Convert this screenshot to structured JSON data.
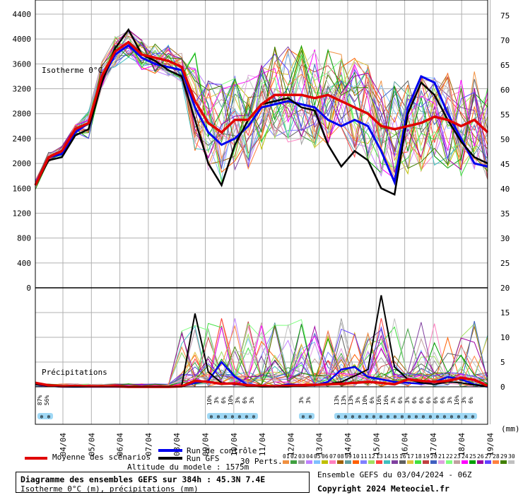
{
  "chart_data": {
    "type": "line",
    "days": [
      "04/04",
      "05/04",
      "06/04",
      "07/04",
      "08/04",
      "09/04",
      "10/04",
      "11/04",
      "12/04",
      "13/04",
      "14/04",
      "15/04",
      "16/04",
      "17/04",
      "18/04",
      "19/04"
    ],
    "left_axis_ticks": [
      0,
      400,
      800,
      1200,
      1600,
      2000,
      2400,
      2800,
      3200,
      3600,
      4000,
      4400
    ],
    "right_axis_top_ticks": [
      25,
      30,
      35,
      40,
      45,
      50,
      55,
      60,
      65,
      70,
      75
    ],
    "right_axis_bottom_ticks": [
      0,
      5,
      10,
      15,
      20
    ],
    "right_axis_unit": "(mm)",
    "isotherm_label": "Isotherme 0°C",
    "precip_label": "Précipitations",
    "series": [
      {
        "name": "Moyenne des scénarios",
        "color": "#e00000",
        "values": [
          1650,
          2100,
          2200,
          2550,
          2650,
          3400,
          3800,
          3950,
          3750,
          3700,
          3650,
          3550,
          3000,
          2650,
          2500,
          2700,
          2700,
          2950,
          3100,
          3100,
          3100,
          3050,
          3100,
          3000,
          2900,
          2800,
          2600,
          2550,
          2600,
          2650,
          2750,
          2700,
          2600,
          2700,
          2500
        ]
      },
      {
        "name": "Run de contrôle",
        "color": "#0000ee",
        "values": [
          1650,
          2100,
          2150,
          2500,
          2650,
          3350,
          3750,
          3900,
          3700,
          3600,
          3550,
          3500,
          2900,
          2500,
          2300,
          2400,
          2600,
          2900,
          2950,
          3000,
          2950,
          2900,
          2700,
          2600,
          2700,
          2600,
          2200,
          1700,
          2900,
          3400,
          3300,
          2800,
          2400,
          2000,
          1950
        ]
      },
      {
        "name": "Run GFS",
        "color": "#000000",
        "values": [
          1650,
          2050,
          2100,
          2450,
          2550,
          3300,
          3850,
          4150,
          3750,
          3650,
          3500,
          3400,
          2700,
          2000,
          1650,
          2300,
          2700,
          2950,
          3000,
          3050,
          2900,
          2850,
          2300,
          1950,
          2200,
          2050,
          1600,
          1500,
          2800,
          3300,
          3100,
          2700,
          2350,
          2100,
          2000
        ]
      }
    ],
    "precip_mean": [
      0.8,
      0.3,
      0.1,
      0.2,
      0.1,
      0.1,
      0.1,
      0,
      0,
      0,
      0,
      0.1,
      1.2,
      1.0,
      0.6,
      0.7,
      0.3,
      0.2,
      0.1,
      0.2,
      0.3,
      0.4,
      0.5,
      0.6,
      0.8,
      1.0,
      0.8,
      0.5,
      1.5,
      1.2,
      1.0,
      1.2,
      1.8,
      1.4,
      0.2
    ],
    "precip_gfs": [
      0.5,
      0.2,
      0,
      0,
      0,
      0,
      0,
      0,
      0,
      0,
      0,
      0.2,
      14.8,
      3.0,
      0.8,
      0.5,
      0.2,
      0,
      0,
      0,
      0.2,
      0.4,
      0.6,
      1.0,
      2.2,
      3.5,
      18.5,
      4.0,
      1.5,
      0.8,
      0.5,
      1.0,
      0.8,
      0.4,
      0.1
    ],
    "precip_ctrl": [
      0.5,
      0.2,
      0,
      0,
      0,
      0,
      0,
      0,
      0,
      0,
      0,
      0.1,
      0.8,
      1.2,
      5.0,
      2.0,
      0.3,
      0.2,
      0,
      0.5,
      0.4,
      0.3,
      1.0,
      3.5,
      4.0,
      2.0,
      1.5,
      1.0,
      0.8,
      0.6,
      1.0,
      2.0,
      1.5,
      0.5,
      0
    ],
    "snow_bands": [
      {
        "day_index": 0,
        "labels": [
          "87%",
          "56%"
        ]
      },
      {
        "day_index": 6,
        "labels": [
          "10%",
          "3%",
          "6%",
          "10%",
          "3%",
          "6%",
          "3%"
        ]
      },
      {
        "day_index": 9,
        "labels": [
          "3%",
          "3%"
        ]
      },
      {
        "day_index": 10,
        "labels": [
          "13%",
          "13%",
          "13%",
          "3%",
          "10%",
          "6%",
          "16%",
          "16%",
          "3%",
          "6%",
          "3%",
          "6%",
          "6%",
          "6%",
          "6%",
          "6%",
          "3%",
          "16%",
          "3%",
          "6%"
        ]
      }
    ],
    "perturbation_numbers": [
      "01",
      "02",
      "03",
      "04",
      "05",
      "06",
      "07",
      "08",
      "09",
      "10",
      "11",
      "12",
      "13",
      "14",
      "15",
      "16",
      "17",
      "18",
      "19",
      "20",
      "21",
      "22",
      "23",
      "24",
      "25",
      "26",
      "27",
      "28",
      "29",
      "30"
    ],
    "perturbation_colors": [
      "#f09040",
      "#40a040",
      "#a0a0a0",
      "#c080ff",
      "#80c0ff",
      "#c0c000",
      "#ff80c0",
      "#a06000",
      "#60a0a0",
      "#ff6000",
      "#8080ff",
      "#a0e060",
      "#ff4040",
      "#40c0c0",
      "#8040a0",
      "#606060",
      "#e0c040",
      "#40e040",
      "#c04040",
      "#4060c0",
      "#e0a0e0",
      "#80ff80",
      "#c0a0a0",
      "#ff00ff",
      "#00a000",
      "#a000a0",
      "#6040ff",
      "#ff8040",
      "#408000",
      "#c0c0c0"
    ]
  },
  "legend": {
    "mean_label": "Moyenne des scénarios",
    "ctrl_label": "Run de contrôle",
    "gfs_label": "Run GFS",
    "perts_label": "30 Perts."
  },
  "altitude": "Altitude du modele : 1575m",
  "info": {
    "title": "Diagramme des ensembles GEFS sur 384h : 45.3N 7.4E",
    "subtitle": "Isotherme 0°C (m), précipitations (mm)",
    "run": "Ensemble GEFS du 03/04/2024 - 06Z",
    "copyright": "Copyright 2024 Meteociel.fr"
  }
}
